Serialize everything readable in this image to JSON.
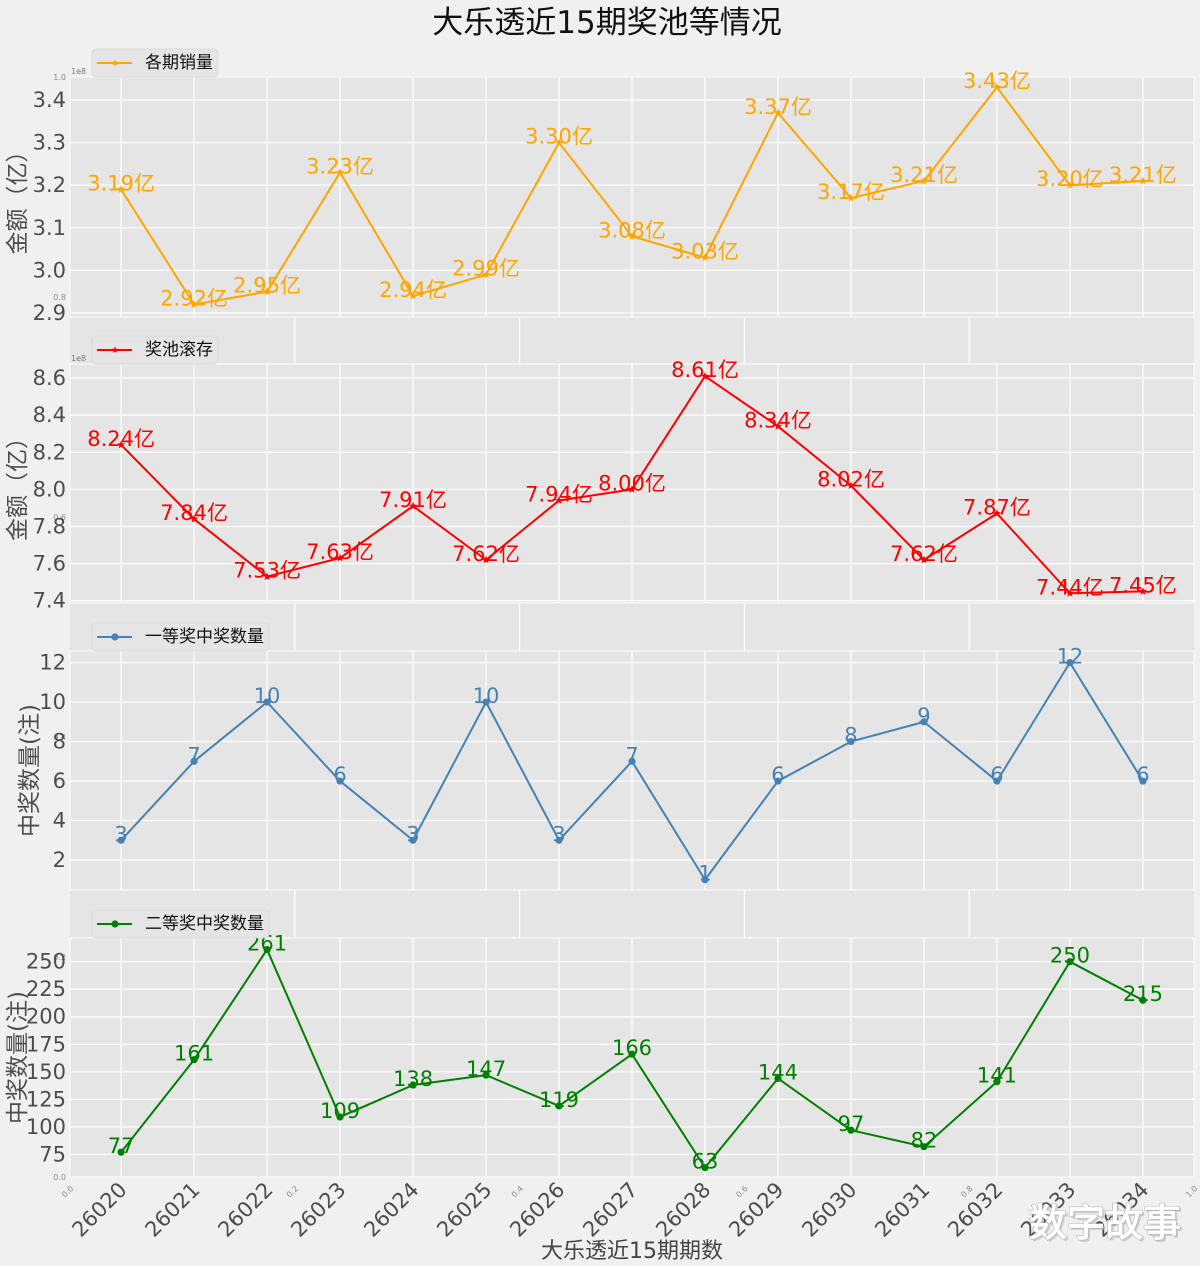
{
  "figure": {
    "title": "大乐透近15期奖池等情况",
    "xlabel": "大乐透近15期期数",
    "watermark": "数字故事",
    "background_axes": {
      "xticks": [
        "0.0",
        "0.2",
        "0.4",
        "0.6",
        "0.8",
        "1.0"
      ],
      "yticks": [
        "0.0",
        "0.2",
        "0.4",
        "0.6",
        "0.8",
        "1.0"
      ]
    }
  },
  "chart_data": [
    {
      "type": "line",
      "title": "",
      "legend": "各期销量",
      "legend_position": "top-left",
      "ylabel": "金额（亿）",
      "xlabel": "",
      "offset_label": "1e8",
      "color": "#ffa500",
      "marker": "star",
      "unit": "亿",
      "categories": [
        "26020",
        "26021",
        "26022",
        "26023",
        "26024",
        "26025",
        "26026",
        "26027",
        "26028",
        "26029",
        "26030",
        "26031",
        "26032",
        "26033",
        "26034"
      ],
      "values": [
        3.19,
        2.92,
        2.95,
        3.23,
        2.94,
        2.99,
        3.3,
        3.08,
        3.03,
        3.37,
        3.17,
        3.21,
        3.43,
        3.2,
        3.21
      ],
      "labels": [
        "3.19亿",
        "2.92亿",
        "2.95亿",
        "3.23亿",
        "2.94亿",
        "2.99亿",
        "3.30亿",
        "3.08亿",
        "3.03亿",
        "3.37亿",
        "3.17亿",
        "3.21亿",
        "3.43亿",
        "3.20亿",
        "3.21亿"
      ],
      "ylim": [
        2.8906,
        3.454
      ],
      "xlim": [
        -0.7,
        14.7
      ],
      "yticks": [
        2.9,
        3.0,
        3.1,
        3.2,
        3.3,
        3.4
      ],
      "ytick_labels": [
        "2.9",
        "3.0",
        "3.1",
        "3.2",
        "3.3",
        "3.4"
      ],
      "grid": true,
      "show_xticklabels": false
    },
    {
      "type": "line",
      "title": "",
      "legend": "奖池滚存",
      "legend_position": "top-left",
      "ylabel": "金额（亿）",
      "xlabel": "",
      "offset_label": "1e8",
      "color": "#ff0000",
      "marker": "star",
      "unit": "亿",
      "categories": [
        "26020",
        "26021",
        "26022",
        "26023",
        "26024",
        "26025",
        "26026",
        "26027",
        "26028",
        "26029",
        "26030",
        "26031",
        "26032",
        "26033",
        "26034"
      ],
      "values": [
        8.24,
        7.84,
        7.53,
        7.63,
        7.91,
        7.62,
        7.94,
        8.0,
        8.61,
        8.34,
        8.02,
        7.62,
        7.87,
        7.44,
        7.45
      ],
      "labels": [
        "8.24亿",
        "7.84亿",
        "7.53亿",
        "7.63亿",
        "7.91亿",
        "7.62亿",
        "7.94亿",
        "8.00亿",
        "8.61亿",
        "8.34亿",
        "8.02亿",
        "7.62亿",
        "7.87亿",
        "7.44亿",
        "7.45亿"
      ],
      "ylim": [
        7.3876,
        8.6757
      ],
      "xlim": [
        -0.7,
        14.7
      ],
      "yticks": [
        7.4,
        7.6,
        7.8,
        8.0,
        8.2,
        8.4,
        8.6
      ],
      "ytick_labels": [
        "7.4",
        "7.6",
        "7.8",
        "8.0",
        "8.2",
        "8.4",
        "8.6"
      ],
      "grid": true,
      "show_xticklabels": false
    },
    {
      "type": "line",
      "title": "",
      "legend": "一等奖中奖数量",
      "legend_position": "top-left",
      "ylabel": "中奖数量(注)",
      "xlabel": "",
      "offset_label": "",
      "color": "#4682b4",
      "marker": "circle",
      "unit": "注",
      "categories": [
        "26020",
        "26021",
        "26022",
        "26023",
        "26024",
        "26025",
        "26026",
        "26027",
        "26028",
        "26029",
        "26030",
        "26031",
        "26032",
        "26033",
        "26034"
      ],
      "values": [
        3,
        7,
        10,
        6,
        3,
        10,
        3,
        7,
        1,
        6,
        8,
        9,
        6,
        12,
        6
      ],
      "labels": [
        "3",
        "7",
        "10",
        "6",
        "3",
        "10",
        "3",
        "7",
        "1",
        "6",
        "8",
        "9",
        "6",
        "12",
        "6"
      ],
      "ylim": [
        0.48,
        12.59
      ],
      "xlim": [
        -0.7,
        14.7
      ],
      "yticks": [
        2,
        4,
        6,
        8,
        10,
        12
      ],
      "ytick_labels": [
        "2",
        "4",
        "6",
        "8",
        "10",
        "12"
      ],
      "grid": true,
      "show_xticklabels": false
    },
    {
      "type": "line",
      "title": "",
      "legend": "二等奖中奖数量",
      "legend_position": "top-left",
      "ylabel": "中奖数量(注)",
      "xlabel": "大乐透近15期期数",
      "offset_label": "",
      "color": "#008000",
      "marker": "circle",
      "unit": "注",
      "categories": [
        "26020",
        "26021",
        "26022",
        "26023",
        "26024",
        "26025",
        "26026",
        "26027",
        "26028",
        "26029",
        "26030",
        "26031",
        "26032",
        "26033",
        "26034"
      ],
      "values": [
        77,
        161,
        261,
        109,
        138,
        147,
        119,
        166,
        63,
        144,
        97,
        82,
        141,
        250,
        215
      ],
      "labels": [
        "77",
        "161",
        "261",
        "109",
        "138",
        "147",
        "119",
        "166",
        "63",
        "144",
        "97",
        "82",
        "141",
        "250",
        "215"
      ],
      "ylim": [
        54.5,
        271.5
      ],
      "xlim": [
        -0.7,
        14.7
      ],
      "yticks": [
        75,
        100,
        125,
        150,
        175,
        200,
        225,
        250
      ],
      "ytick_labels": [
        "75",
        "100",
        "125",
        "150",
        "175",
        "200",
        "225",
        "250"
      ],
      "grid": true,
      "show_xticklabels": true
    }
  ]
}
